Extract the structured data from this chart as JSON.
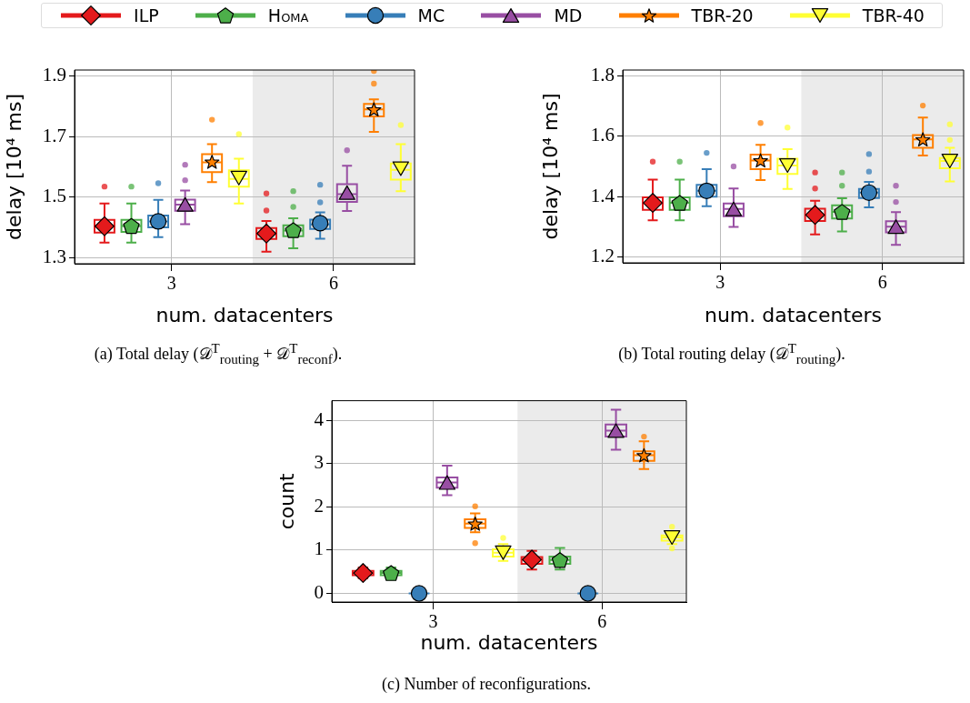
{
  "chart_data": [
    {
      "type": "box",
      "title": "(a) Total delay (𝒟$^{T}$$_{routing}$ + 𝒟$^{T}$$_{reconf}$).",
      "xlabel": "num. datacenters",
      "ylabel": "delay [10⁴ ms]",
      "categories": [
        "3",
        "6"
      ],
      "ylim": [
        1.28,
        1.92
      ],
      "yticks": [
        1.3,
        1.5,
        1.7,
        1.9
      ],
      "grid": true,
      "legend": "top",
      "bands": [
        {
          "axis": "x",
          "from": "6",
          "to": "6",
          "color": "#ebebeb"
        }
      ],
      "series": [
        {
          "name": "ILP",
          "color": "#e41a1c",
          "marker": "diamond",
          "boxes": [
            {
              "low": 1.35,
              "q1": 1.383,
              "median": 1.405,
              "q3": 1.425,
              "high": 1.479,
              "mean": 1.404,
              "outliers": [
                1.535
              ]
            },
            {
              "low": 1.32,
              "q1": 1.362,
              "median": 1.38,
              "q3": 1.398,
              "high": 1.421,
              "mean": 1.38,
              "outliers": [
                1.512,
                1.456
              ]
            }
          ]
        },
        {
          "name": "Homa",
          "color": "#4daf4a",
          "marker": "pentagon",
          "boxes": [
            {
              "low": 1.35,
              "q1": 1.385,
              "median": 1.405,
              "q3": 1.425,
              "high": 1.479,
              "mean": 1.405,
              "outliers": [
                1.535
              ]
            },
            {
              "low": 1.331,
              "q1": 1.371,
              "median": 1.39,
              "q3": 1.407,
              "high": 1.43,
              "mean": 1.391,
              "outliers": [
                1.52,
                1.468
              ]
            }
          ]
        },
        {
          "name": "MC",
          "color": "#377eb8",
          "marker": "circle",
          "boxes": [
            {
              "low": 1.368,
              "q1": 1.4,
              "median": 1.42,
              "q3": 1.439,
              "high": 1.491,
              "mean": 1.42,
              "outliers": [
                1.546
              ]
            },
            {
              "low": 1.363,
              "q1": 1.395,
              "median": 1.41,
              "q3": 1.426,
              "high": 1.45,
              "mean": 1.414,
              "outliers": [
                1.541,
                1.483
              ]
            }
          ]
        },
        {
          "name": "MD",
          "color": "#984ea3",
          "marker": "triangle",
          "boxes": [
            {
              "low": 1.411,
              "q1": 1.455,
              "median": 1.475,
              "q3": 1.492,
              "high": 1.522,
              "mean": 1.476,
              "outliers": [
                1.556,
                1.607
              ]
            },
            {
              "low": 1.454,
              "q1": 1.484,
              "median": 1.51,
              "q3": 1.543,
              "high": 1.604,
              "mean": 1.515,
              "outliers": [
                1.655
              ]
            }
          ]
        },
        {
          "name": "TBR-20",
          "color": "#ff7f00",
          "marker": "star",
          "boxes": [
            {
              "low": 1.55,
              "q1": 1.583,
              "median": 1.615,
              "q3": 1.642,
              "high": 1.675,
              "mean": 1.617,
              "outliers": [
                1.756
              ]
            },
            {
              "low": 1.716,
              "q1": 1.767,
              "median": 1.79,
              "q3": 1.808,
              "high": 1.823,
              "mean": 1.79,
              "outliers": [
                1.875,
                1.917
              ]
            }
          ]
        },
        {
          "name": "TBR-40",
          "color": "#ffff33",
          "marker": "triangle-down",
          "boxes": [
            {
              "low": 1.479,
              "q1": 1.535,
              "median": 1.56,
              "q3": 1.589,
              "high": 1.627,
              "mean": 1.563,
              "outliers": [
                1.708
              ]
            },
            {
              "low": 1.52,
              "q1": 1.558,
              "median": 1.59,
              "q3": 1.611,
              "high": 1.675,
              "mean": 1.594,
              "outliers": [
                1.738
              ]
            }
          ]
        }
      ]
    },
    {
      "type": "box",
      "title": "(b) Total routing delay (𝒟$^{T}$$_{routing}$).",
      "xlabel": "num. datacenters",
      "ylabel": "delay [10⁴ ms]",
      "categories": [
        "3",
        "6"
      ],
      "ylim": [
        1.18,
        1.82
      ],
      "yticks": [
        1.2,
        1.4,
        1.6,
        1.8
      ],
      "grid": true,
      "bands": [
        {
          "axis": "x",
          "from": "6",
          "to": "6",
          "color": "#ebebeb"
        }
      ],
      "series": [
        {
          "color": "#e41a1c",
          "marker": "diamond",
          "boxes": [
            {
              "low": 1.321,
              "q1": 1.356,
              "median": 1.379,
              "q3": 1.397,
              "high": 1.456,
              "mean": 1.379,
              "outliers": [
                1.516
              ]
            },
            {
              "low": 1.274,
              "q1": 1.319,
              "median": 1.339,
              "q3": 1.36,
              "high": 1.386,
              "mean": 1.339,
              "outliers": [
                1.48,
                1.427
              ]
            }
          ]
        },
        {
          "color": "#4daf4a",
          "marker": "pentagon",
          "boxes": [
            {
              "low": 1.321,
              "q1": 1.356,
              "median": 1.379,
              "q3": 1.397,
              "high": 1.456,
              "mean": 1.379,
              "outliers": [
                1.516
              ]
            },
            {
              "low": 1.284,
              "q1": 1.327,
              "median": 1.349,
              "q3": 1.371,
              "high": 1.394,
              "mean": 1.349,
              "outliers": [
                1.48,
                1.436
              ]
            }
          ]
        },
        {
          "color": "#377eb8",
          "marker": "circle",
          "boxes": [
            {
              "low": 1.368,
              "q1": 1.4,
              "median": 1.419,
              "q3": 1.439,
              "high": 1.491,
              "mean": 1.419,
              "outliers": [
                1.545
              ]
            },
            {
              "low": 1.364,
              "q1": 1.395,
              "median": 1.413,
              "q3": 1.425,
              "high": 1.449,
              "mean": 1.413,
              "outliers": [
                1.541,
                1.483
              ]
            }
          ]
        },
        {
          "color": "#984ea3",
          "marker": "triangle",
          "boxes": [
            {
              "low": 1.299,
              "q1": 1.335,
              "median": 1.359,
              "q3": 1.377,
              "high": 1.427,
              "mean": 1.359,
              "outliers": [
                1.5
              ]
            },
            {
              "low": 1.24,
              "q1": 1.281,
              "median": 1.3,
              "q3": 1.318,
              "high": 1.348,
              "mean": 1.3,
              "outliers": [
                1.436,
                1.382
              ]
            }
          ]
        },
        {
          "color": "#ff7f00",
          "marker": "star",
          "boxes": [
            {
              "low": 1.455,
              "q1": 1.491,
              "median": 1.52,
              "q3": 1.539,
              "high": 1.572,
              "mean": 1.52,
              "outliers": [
                1.644
              ]
            },
            {
              "low": 1.536,
              "q1": 1.562,
              "median": 1.59,
              "q3": 1.604,
              "high": 1.662,
              "mean": 1.59,
              "outliers": [
                1.702
              ]
            }
          ]
        },
        {
          "color": "#ffff33",
          "marker": "triangle-down",
          "boxes": [
            {
              "low": 1.425,
              "q1": 1.475,
              "median": 1.503,
              "q3": 1.526,
              "high": 1.557,
              "mean": 1.503,
              "outliers": [
                1.629
              ]
            },
            {
              "low": 1.45,
              "q1": 1.494,
              "median": 1.518,
              "q3": 1.528,
              "high": 1.562,
              "mean": 1.518,
              "outliers": [
                1.64,
                1.588
              ]
            }
          ]
        }
      ]
    },
    {
      "type": "box",
      "title": "(c) Number of reconfigurations.",
      "xlabel": "num. datacenters",
      "ylabel": "count",
      "categories": [
        "3",
        "6"
      ],
      "ylim": [
        -0.2,
        4.45
      ],
      "yticks": [
        0,
        1,
        2,
        3,
        4
      ],
      "grid": true,
      "bands": [
        {
          "axis": "x",
          "from": "6",
          "to": "6",
          "color": "#ebebeb"
        }
      ],
      "series": [
        {
          "color": "#e41a1c",
          "marker": "diamond",
          "boxes": [
            {
              "low": 0.35,
              "q1": 0.42,
              "median": 0.47,
              "q3": 0.52,
              "high": 0.6,
              "mean": 0.47
            },
            {
              "low": 0.55,
              "q1": 0.68,
              "median": 0.78,
              "q3": 0.84,
              "high": 0.98,
              "mean": 0.78
            }
          ]
        },
        {
          "color": "#4daf4a",
          "marker": "pentagon",
          "boxes": [
            {
              "low": 0.35,
              "q1": 0.42,
              "median": 0.47,
              "q3": 0.52,
              "high": 0.6,
              "mean": 0.47
            },
            {
              "low": 0.55,
              "q1": 0.68,
              "median": 0.77,
              "q3": 0.85,
              "high": 1.05,
              "mean": 0.77
            }
          ]
        },
        {
          "color": "#377eb8",
          "marker": "circle",
          "boxes": [
            {
              "low": 0,
              "q1": 0,
              "median": 0,
              "q3": 0,
              "high": 0,
              "mean": 0
            },
            {
              "low": 0,
              "q1": 0,
              "median": 0,
              "q3": 0,
              "high": 0,
              "mean": 0
            }
          ]
        },
        {
          "color": "#984ea3",
          "marker": "triangle",
          "boxes": [
            {
              "low": 2.27,
              "q1": 2.44,
              "median": 2.56,
              "q3": 2.68,
              "high": 2.95,
              "mean": 2.56
            },
            {
              "low": 3.32,
              "q1": 3.62,
              "median": 3.76,
              "q3": 3.9,
              "high": 4.24,
              "mean": 3.76
            }
          ]
        },
        {
          "color": "#ff7f00",
          "marker": "star",
          "boxes": [
            {
              "low": 1.41,
              "q1": 1.51,
              "median": 1.61,
              "q3": 1.71,
              "high": 1.85,
              "mean": 1.61,
              "outliers": [
                2.01,
                1.16
              ]
            },
            {
              "low": 2.87,
              "q1": 3.06,
              "median": 3.19,
              "q3": 3.28,
              "high": 3.51,
              "mean": 3.19,
              "outliers": [
                3.62
              ]
            }
          ]
        },
        {
          "color": "#ffff33",
          "marker": "triangle-down",
          "boxes": [
            {
              "low": 0.75,
              "q1": 0.85,
              "median": 0.94,
              "q3": 1.02,
              "high": 1.14,
              "mean": 0.94,
              "outliers": [
                1.28
              ]
            },
            {
              "low": 1.14,
              "q1": 1.22,
              "median": 1.29,
              "q3": 1.34,
              "high": 1.44,
              "mean": 1.29,
              "outliers": [
                1.54,
                1.04
              ]
            }
          ]
        }
      ]
    }
  ]
}
